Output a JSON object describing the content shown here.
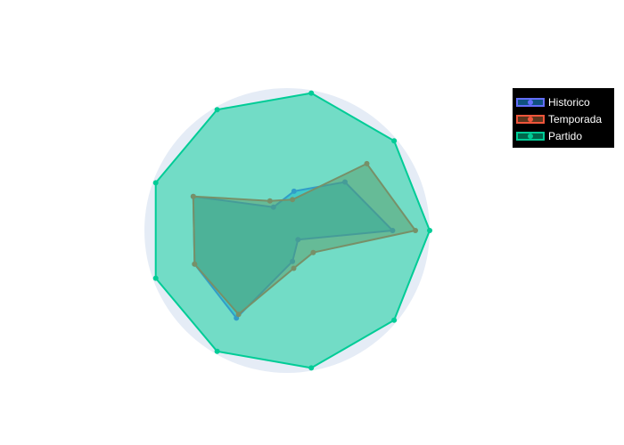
{
  "chart_data": {
    "type": "radar",
    "categories": [
      "",
      "",
      "",
      "",
      "",
      "",
      "",
      "",
      ""
    ],
    "range": [
      0,
      1
    ],
    "grid": false,
    "legend_position": "top-right",
    "series": [
      {
        "name": "Historico",
        "color": "#636efa",
        "fill_color": "#1fa3ff",
        "values": [
          0.74,
          0.53,
          0.28,
          0.19,
          0.7,
          0.69,
          0.71,
          0.22,
          0.1
        ]
      },
      {
        "name": "Temporada",
        "color": "#ef553b",
        "fill_color": "#b46a3a",
        "values": [
          0.9,
          0.73,
          0.22,
          0.24,
          0.7,
          0.69,
          0.68,
          0.27,
          0.24
        ]
      },
      {
        "name": "Partido",
        "color": "#00cc96",
        "fill_color": "#00cc96",
        "values": [
          1.0,
          0.98,
          0.98,
          0.98,
          0.98,
          0.98,
          0.98,
          0.98,
          0.98
        ]
      }
    ]
  }
}
